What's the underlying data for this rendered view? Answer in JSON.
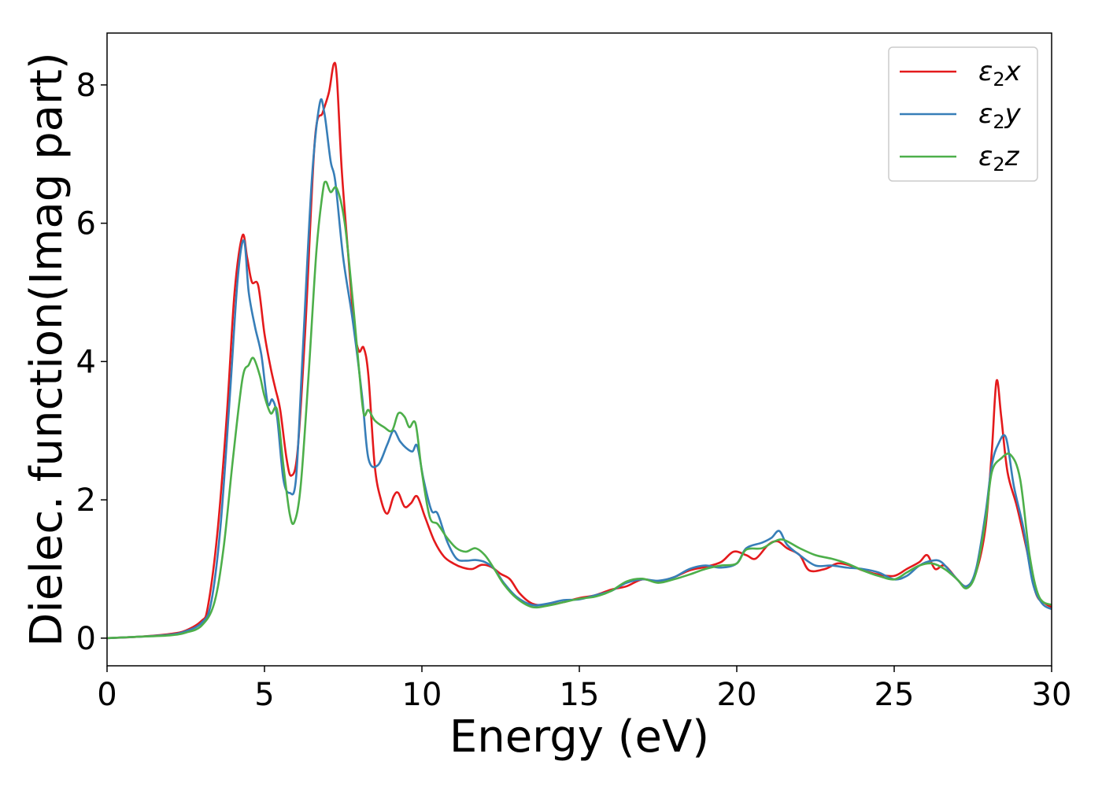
{
  "chart_data": {
    "type": "line",
    "title": "",
    "xlabel": "Energy (eV)",
    "ylabel": "Dielec. function(Imag part)",
    "xlim": [
      0,
      30
    ],
    "ylim": [
      -0.4,
      8.75
    ],
    "xticks": [
      0,
      5,
      10,
      15,
      20,
      25,
      30
    ],
    "yticks": [
      0,
      2,
      4,
      6,
      8
    ],
    "grid": false,
    "legend_position": "top-right",
    "series": [
      {
        "name": "ε₂x",
        "legend_main": "ε",
        "legend_sub": "2",
        "legend_tail": "x",
        "color": "#e41a1c",
        "points": [
          [
            0,
            0
          ],
          [
            1,
            0.02
          ],
          [
            2,
            0.06
          ],
          [
            2.5,
            0.11
          ],
          [
            3,
            0.25
          ],
          [
            3.2,
            0.45
          ],
          [
            3.5,
            1.5
          ],
          [
            3.8,
            3.2
          ],
          [
            4.05,
            5.0
          ],
          [
            4.3,
            5.82
          ],
          [
            4.45,
            5.5
          ],
          [
            4.6,
            5.15
          ],
          [
            4.8,
            5.1
          ],
          [
            5.0,
            4.4
          ],
          [
            5.2,
            3.9
          ],
          [
            5.35,
            3.6
          ],
          [
            5.5,
            3.3
          ],
          [
            5.7,
            2.6
          ],
          [
            5.85,
            2.35
          ],
          [
            6.05,
            2.7
          ],
          [
            6.3,
            4.5
          ],
          [
            6.6,
            7.2
          ],
          [
            6.85,
            7.6
          ],
          [
            7.05,
            7.9
          ],
          [
            7.2,
            8.3
          ],
          [
            7.3,
            8.1
          ],
          [
            7.45,
            6.8
          ],
          [
            7.65,
            5.6
          ],
          [
            7.85,
            4.5
          ],
          [
            8.0,
            4.15
          ],
          [
            8.15,
            4.2
          ],
          [
            8.3,
            3.8
          ],
          [
            8.5,
            2.5
          ],
          [
            8.7,
            2.0
          ],
          [
            8.9,
            1.8
          ],
          [
            9.1,
            2.05
          ],
          [
            9.25,
            2.1
          ],
          [
            9.45,
            1.9
          ],
          [
            9.65,
            1.95
          ],
          [
            9.85,
            2.05
          ],
          [
            10.1,
            1.75
          ],
          [
            10.4,
            1.4
          ],
          [
            10.7,
            1.18
          ],
          [
            11.0,
            1.08
          ],
          [
            11.3,
            1.02
          ],
          [
            11.6,
            1.0
          ],
          [
            11.9,
            1.06
          ],
          [
            12.2,
            1.03
          ],
          [
            12.5,
            0.93
          ],
          [
            12.8,
            0.85
          ],
          [
            13.1,
            0.65
          ],
          [
            13.5,
            0.5
          ],
          [
            14.0,
            0.48
          ],
          [
            14.5,
            0.52
          ],
          [
            15.0,
            0.58
          ],
          [
            15.5,
            0.62
          ],
          [
            16.0,
            0.7
          ],
          [
            16.5,
            0.75
          ],
          [
            17.0,
            0.85
          ],
          [
            17.5,
            0.82
          ],
          [
            18.0,
            0.88
          ],
          [
            18.5,
            0.98
          ],
          [
            19.0,
            1.03
          ],
          [
            19.5,
            1.1
          ],
          [
            19.9,
            1.25
          ],
          [
            20.3,
            1.2
          ],
          [
            20.6,
            1.15
          ],
          [
            21.0,
            1.35
          ],
          [
            21.3,
            1.4
          ],
          [
            21.6,
            1.3
          ],
          [
            22.0,
            1.2
          ],
          [
            22.3,
            0.98
          ],
          [
            22.8,
            1.0
          ],
          [
            23.2,
            1.08
          ],
          [
            23.6,
            1.05
          ],
          [
            24.0,
            0.98
          ],
          [
            24.5,
            0.92
          ],
          [
            25.0,
            0.9
          ],
          [
            25.4,
            1.0
          ],
          [
            25.8,
            1.1
          ],
          [
            26.05,
            1.2
          ],
          [
            26.3,
            1.0
          ],
          [
            26.6,
            1.05
          ],
          [
            27.0,
            0.85
          ],
          [
            27.3,
            0.75
          ],
          [
            27.6,
            0.95
          ],
          [
            27.9,
            1.6
          ],
          [
            28.1,
            2.7
          ],
          [
            28.25,
            3.72
          ],
          [
            28.4,
            3.2
          ],
          [
            28.6,
            2.4
          ],
          [
            28.9,
            1.9
          ],
          [
            29.2,
            1.3
          ],
          [
            29.5,
            0.65
          ],
          [
            29.8,
            0.5
          ],
          [
            30,
            0.45
          ]
        ]
      },
      {
        "name": "ε₂y",
        "legend_main": "ε",
        "legend_sub": "2",
        "legend_tail": "y",
        "color": "#377eb8",
        "points": [
          [
            0,
            0
          ],
          [
            1,
            0.02
          ],
          [
            2,
            0.05
          ],
          [
            2.5,
            0.1
          ],
          [
            3,
            0.22
          ],
          [
            3.3,
            0.5
          ],
          [
            3.6,
            1.6
          ],
          [
            3.9,
            3.5
          ],
          [
            4.15,
            5.2
          ],
          [
            4.35,
            5.75
          ],
          [
            4.5,
            5.0
          ],
          [
            4.7,
            4.5
          ],
          [
            4.9,
            4.1
          ],
          [
            5.1,
            3.4
          ],
          [
            5.25,
            3.45
          ],
          [
            5.4,
            3.2
          ],
          [
            5.6,
            2.3
          ],
          [
            5.8,
            2.1
          ],
          [
            6.0,
            2.3
          ],
          [
            6.2,
            4.0
          ],
          [
            6.5,
            6.6
          ],
          [
            6.75,
            7.72
          ],
          [
            6.9,
            7.6
          ],
          [
            7.1,
            6.9
          ],
          [
            7.25,
            6.6
          ],
          [
            7.5,
            5.5
          ],
          [
            7.8,
            4.6
          ],
          [
            8.1,
            3.5
          ],
          [
            8.3,
            2.6
          ],
          [
            8.6,
            2.5
          ],
          [
            8.9,
            2.8
          ],
          [
            9.1,
            3.0
          ],
          [
            9.3,
            2.85
          ],
          [
            9.5,
            2.75
          ],
          [
            9.7,
            2.7
          ],
          [
            9.85,
            2.78
          ],
          [
            10.05,
            2.3
          ],
          [
            10.3,
            1.85
          ],
          [
            10.5,
            1.8
          ],
          [
            10.8,
            1.4
          ],
          [
            11.1,
            1.15
          ],
          [
            11.4,
            1.12
          ],
          [
            11.7,
            1.13
          ],
          [
            12.0,
            1.1
          ],
          [
            12.3,
            1.0
          ],
          [
            12.6,
            0.8
          ],
          [
            13.0,
            0.6
          ],
          [
            13.5,
            0.48
          ],
          [
            14.0,
            0.5
          ],
          [
            14.5,
            0.55
          ],
          [
            15.0,
            0.56
          ],
          [
            15.5,
            0.62
          ],
          [
            16.0,
            0.68
          ],
          [
            16.5,
            0.8
          ],
          [
            17.0,
            0.85
          ],
          [
            17.5,
            0.83
          ],
          [
            18.0,
            0.88
          ],
          [
            18.5,
            1.0
          ],
          [
            19.0,
            1.05
          ],
          [
            19.5,
            1.02
          ],
          [
            20.0,
            1.08
          ],
          [
            20.3,
            1.3
          ],
          [
            20.8,
            1.38
          ],
          [
            21.1,
            1.45
          ],
          [
            21.35,
            1.55
          ],
          [
            21.6,
            1.35
          ],
          [
            22.0,
            1.2
          ],
          [
            22.5,
            1.05
          ],
          [
            23.0,
            1.05
          ],
          [
            23.5,
            1.02
          ],
          [
            24.0,
            1.0
          ],
          [
            24.5,
            0.95
          ],
          [
            25.0,
            0.85
          ],
          [
            25.4,
            0.9
          ],
          [
            25.8,
            1.05
          ],
          [
            26.2,
            1.12
          ],
          [
            26.5,
            1.1
          ],
          [
            26.9,
            0.9
          ],
          [
            27.3,
            0.75
          ],
          [
            27.6,
            1.0
          ],
          [
            27.9,
            1.8
          ],
          [
            28.1,
            2.5
          ],
          [
            28.3,
            2.8
          ],
          [
            28.55,
            2.9
          ],
          [
            28.8,
            2.2
          ],
          [
            29.1,
            1.6
          ],
          [
            29.4,
            0.8
          ],
          [
            29.7,
            0.5
          ],
          [
            30,
            0.42
          ]
        ]
      },
      {
        "name": "ε₂z",
        "legend_main": "ε",
        "legend_sub": "2",
        "legend_tail": "z",
        "color": "#4daf4a",
        "points": [
          [
            0,
            0
          ],
          [
            1,
            0.02
          ],
          [
            2,
            0.04
          ],
          [
            2.5,
            0.08
          ],
          [
            3,
            0.18
          ],
          [
            3.4,
            0.5
          ],
          [
            3.7,
            1.3
          ],
          [
            4.0,
            2.6
          ],
          [
            4.3,
            3.75
          ],
          [
            4.5,
            3.95
          ],
          [
            4.65,
            4.05
          ],
          [
            4.85,
            3.8
          ],
          [
            5.0,
            3.5
          ],
          [
            5.2,
            3.25
          ],
          [
            5.4,
            3.3
          ],
          [
            5.6,
            2.5
          ],
          [
            5.8,
            1.8
          ],
          [
            5.95,
            1.68
          ],
          [
            6.15,
            2.2
          ],
          [
            6.4,
            3.8
          ],
          [
            6.65,
            5.6
          ],
          [
            6.85,
            6.45
          ],
          [
            6.95,
            6.6
          ],
          [
            7.1,
            6.45
          ],
          [
            7.3,
            6.5
          ],
          [
            7.55,
            6.0
          ],
          [
            7.8,
            4.9
          ],
          [
            8.0,
            3.9
          ],
          [
            8.15,
            3.25
          ],
          [
            8.3,
            3.3
          ],
          [
            8.5,
            3.15
          ],
          [
            8.8,
            3.05
          ],
          [
            9.05,
            3.0
          ],
          [
            9.25,
            3.25
          ],
          [
            9.45,
            3.2
          ],
          [
            9.6,
            3.05
          ],
          [
            9.8,
            3.1
          ],
          [
            10.0,
            2.4
          ],
          [
            10.25,
            1.75
          ],
          [
            10.5,
            1.65
          ],
          [
            10.8,
            1.45
          ],
          [
            11.1,
            1.3
          ],
          [
            11.4,
            1.25
          ],
          [
            11.7,
            1.3
          ],
          [
            12.0,
            1.2
          ],
          [
            12.3,
            1.0
          ],
          [
            12.6,
            0.78
          ],
          [
            13.0,
            0.58
          ],
          [
            13.5,
            0.45
          ],
          [
            14.0,
            0.47
          ],
          [
            14.5,
            0.52
          ],
          [
            15.0,
            0.57
          ],
          [
            15.5,
            0.6
          ],
          [
            16.0,
            0.68
          ],
          [
            16.5,
            0.82
          ],
          [
            17.0,
            0.86
          ],
          [
            17.5,
            0.8
          ],
          [
            18.0,
            0.85
          ],
          [
            18.5,
            0.92
          ],
          [
            19.0,
            1.0
          ],
          [
            19.5,
            1.05
          ],
          [
            20.0,
            1.08
          ],
          [
            20.3,
            1.28
          ],
          [
            20.8,
            1.3
          ],
          [
            21.2,
            1.4
          ],
          [
            21.5,
            1.42
          ],
          [
            22.0,
            1.3
          ],
          [
            22.5,
            1.2
          ],
          [
            23.0,
            1.15
          ],
          [
            23.5,
            1.08
          ],
          [
            24.0,
            0.98
          ],
          [
            24.5,
            0.9
          ],
          [
            25.0,
            0.85
          ],
          [
            25.4,
            0.95
          ],
          [
            25.8,
            1.05
          ],
          [
            26.2,
            1.08
          ],
          [
            26.6,
            1.0
          ],
          [
            27.0,
            0.85
          ],
          [
            27.3,
            0.72
          ],
          [
            27.6,
            0.95
          ],
          [
            27.9,
            1.7
          ],
          [
            28.1,
            2.4
          ],
          [
            28.4,
            2.6
          ],
          [
            28.7,
            2.65
          ],
          [
            29.0,
            2.3
          ],
          [
            29.3,
            1.2
          ],
          [
            29.6,
            0.6
          ],
          [
            30,
            0.48
          ]
        ]
      }
    ]
  }
}
